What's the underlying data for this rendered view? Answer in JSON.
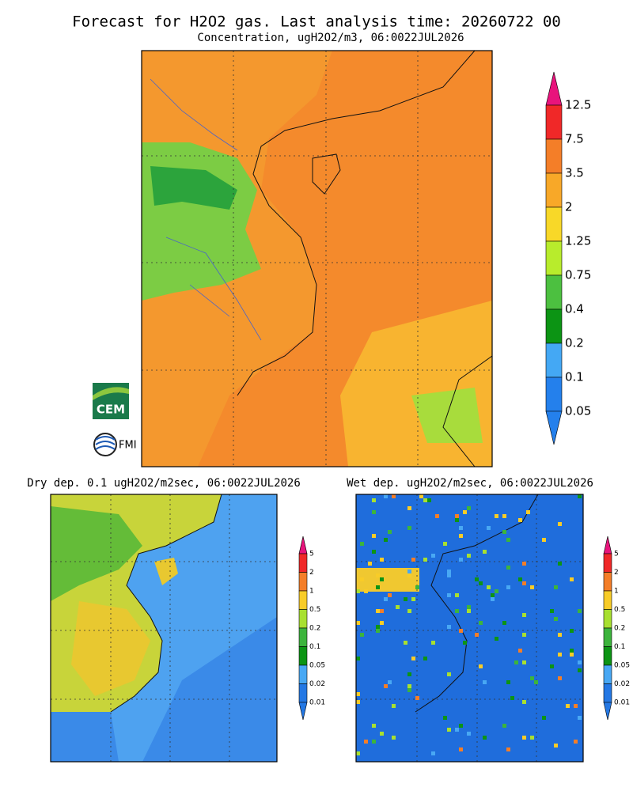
{
  "header": {
    "title": "Forecast for H2O2 gas. Last analysis time: 20260722 00",
    "subtitle": "Concentration, ugH2O2/m3, 06:0022JUL2026"
  },
  "main_map": {
    "colorbar": {
      "labels": [
        "12.5",
        "7.5",
        "3.5",
        "2",
        "1.25",
        "0.75",
        "0.4",
        "0.2",
        "0.1",
        "0.05"
      ],
      "colors": [
        "#e8147c",
        "#f02828",
        "#f47e28",
        "#f8a828",
        "#f8d828",
        "#b8ec2c",
        "#4cc040",
        "#0c9414",
        "#44a8f4",
        "#2480ec",
        "#2480ec"
      ]
    }
  },
  "logos": {
    "cem": "CEM",
    "fmi": "FMI"
  },
  "dry_map": {
    "title": "Dry dep. 0.1 ugH2O2/m2sec, 06:0022JUL2026",
    "colorbar": {
      "labels": [
        "5",
        "2",
        "1",
        "0.5",
        "0.2",
        "0.1",
        "0.05",
        "0.02",
        "0.01"
      ],
      "colors": [
        "#e8147c",
        "#f02828",
        "#f47e28",
        "#f8cc28",
        "#a8e030",
        "#3cb43c",
        "#0c9414",
        "#48a8f4",
        "#2478e4",
        "#2478e4"
      ]
    }
  },
  "wet_map": {
    "title": "Wet dep. ugH2O2/m2sec, 06:0022JUL2026",
    "colorbar": {
      "labels": [
        "5",
        "2",
        "1",
        "0.5",
        "0.2",
        "0.1",
        "0.05",
        "0.02",
        "0.01"
      ],
      "colors": [
        "#e8147c",
        "#f02828",
        "#f47e28",
        "#f8cc28",
        "#a8e030",
        "#3cb43c",
        "#0c9414",
        "#48a8f4",
        "#2478e4",
        "#2478e4"
      ]
    }
  }
}
